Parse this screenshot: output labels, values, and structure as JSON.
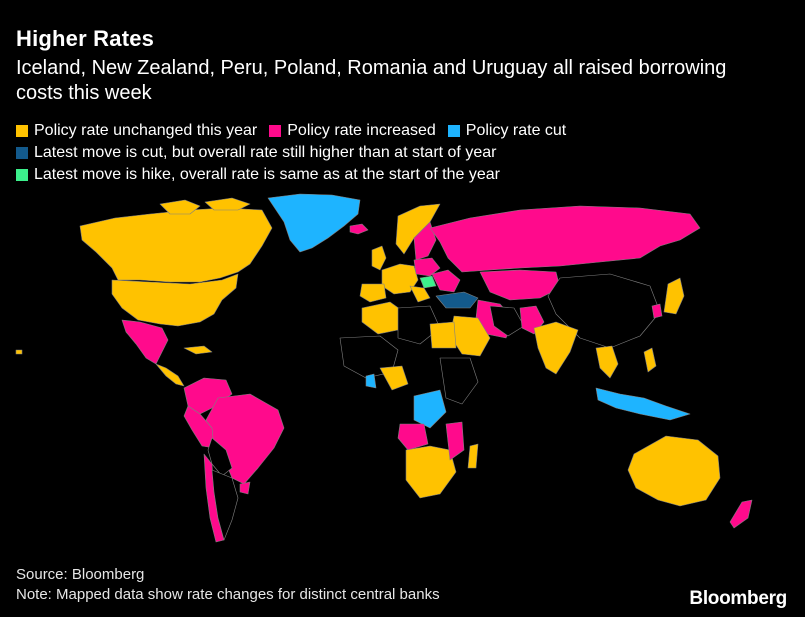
{
  "header": {
    "title": "Higher Rates",
    "subtitle": "Iceland, New Zealand, Peru, Poland, Romania and Uruguay all raised borrowing costs this week"
  },
  "legend": [
    {
      "label": "Policy rate unchanged this year",
      "color": "#FFC200"
    },
    {
      "label": "Policy rate increased",
      "color": "#FF0A8C"
    },
    {
      "label": "Policy rate cut",
      "color": "#1EB4FF"
    },
    {
      "label": "Latest move is cut, but overall rate still higher than at start of year",
      "color": "#135A8C"
    },
    {
      "label": "Latest move is hike, overall rate is same as at the start of the year",
      "color": "#3CF08C"
    }
  ],
  "colors": {
    "unchanged": "#FFC200",
    "increased": "#FF0A8C",
    "cut": "#1EB4FF",
    "cut_but_higher": "#135A8C",
    "hike_same": "#3CF08C",
    "no_data": "#000000",
    "border": "#808080"
  },
  "footer": {
    "source": "Source: Bloomberg",
    "note": "Note: Mapped data show rate changes for distinct central banks",
    "brand": "Bloomberg"
  }
}
